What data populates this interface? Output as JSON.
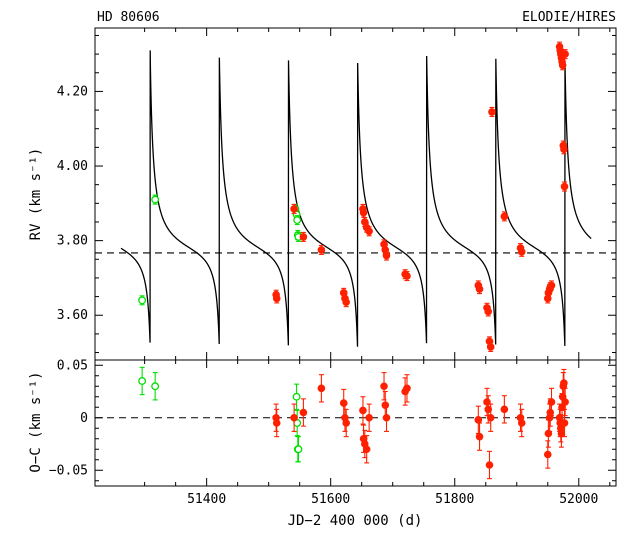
{
  "chart_data": [
    {
      "type": "scatter",
      "name_left": "HD 80606",
      "name_right": "ELODIE/HIRES",
      "xlabel": "",
      "ylabel": "RV (km s⁻¹)",
      "xlim": [
        51220,
        52060
      ],
      "ylim": [
        3.48,
        4.37
      ],
      "yticks": [
        3.6,
        3.8,
        4.0,
        4.2
      ],
      "ytick_labels": [
        "3.60",
        "3.80",
        "4.00",
        "4.20"
      ],
      "xticks": [
        51400,
        51600,
        51800,
        52000
      ],
      "dashed_level": 3.767,
      "model_curve": {
        "color": "#000000",
        "period_d": 111.43,
        "peak_epochs_d": [
          51309,
          51420,
          51532,
          51643,
          51755,
          51866,
          51977
        ],
        "peak_value": 4.31,
        "min_value": 3.49,
        "x_range": [
          51262,
          52020
        ]
      },
      "series": [
        {
          "instrument": "ELODIE",
          "color": "#00e000",
          "marker": "open-circle",
          "x": [
            51296,
            51317,
            51543,
            51545,
            51546,
            51547,
            51548
          ],
          "y": [
            3.64,
            3.91,
            3.885,
            3.87,
            3.855,
            3.815,
            3.81
          ],
          "err": [
            0.012,
            0.012,
            0.012,
            0.012,
            0.012,
            0.012,
            0.012
          ]
        },
        {
          "instrument": "HIRES",
          "color": "#ff2000",
          "marker": "filled-circle",
          "x": [
            51512,
            51513,
            51541,
            51556,
            51585,
            51621,
            51623,
            51625,
            51652,
            51653,
            51655,
            51658,
            51662,
            51686,
            51688,
            51690,
            51720,
            51723,
            51838,
            51840,
            51852,
            51854,
            51856,
            51858,
            51860,
            51880,
            51906,
            51908,
            51950,
            51951,
            51953,
            51954,
            51956,
            51969,
            51970,
            51971,
            51972,
            51973,
            51974,
            51975,
            51976,
            51977,
            51978
          ],
          "y": [
            3.655,
            3.645,
            3.885,
            3.81,
            3.775,
            3.66,
            3.645,
            3.635,
            3.885,
            3.875,
            3.85,
            3.835,
            3.825,
            3.79,
            3.775,
            3.76,
            3.71,
            3.705,
            3.68,
            3.67,
            3.62,
            3.61,
            3.53,
            3.515,
            4.145,
            3.865,
            3.78,
            3.77,
            3.645,
            3.66,
            3.67,
            3.675,
            3.68,
            4.32,
            4.31,
            4.3,
            4.29,
            4.28,
            4.27,
            4.055,
            4.045,
            3.945,
            4.3
          ],
          "err": [
            0.012,
            0.012,
            0.012,
            0.012,
            0.012,
            0.012,
            0.012,
            0.012,
            0.012,
            0.012,
            0.012,
            0.012,
            0.012,
            0.012,
            0.012,
            0.012,
            0.012,
            0.012,
            0.012,
            0.012,
            0.012,
            0.012,
            0.012,
            0.012,
            0.012,
            0.012,
            0.012,
            0.012,
            0.012,
            0.012,
            0.012,
            0.012,
            0.012,
            0.012,
            0.012,
            0.012,
            0.012,
            0.012,
            0.012,
            0.012,
            0.012,
            0.012,
            0.012
          ]
        }
      ]
    },
    {
      "type": "scatter",
      "xlabel": "JD−2 400 000 (d)",
      "ylabel": "O−C (km s⁻¹)",
      "xlim": [
        51220,
        52060
      ],
      "ylim": [
        -0.065,
        0.055
      ],
      "yticks": [
        -0.05,
        0,
        0.05
      ],
      "ytick_labels": [
        "−0.05",
        "0",
        "0.05"
      ],
      "xticks": [
        51400,
        51600,
        51800,
        52000
      ],
      "xtick_labels": [
        "51400",
        "51600",
        "51800",
        "52000"
      ],
      "dashed_level": 0,
      "series": [
        {
          "instrument": "ELODIE",
          "color": "#00e000",
          "marker": "open-circle",
          "x": [
            51296,
            51317,
            51545,
            51546,
            51547,
            51548
          ],
          "y": [
            0.035,
            0.03,
            0.02,
            -0.005,
            -0.03,
            -0.03
          ],
          "err": [
            0.013,
            0.013,
            0.012,
            0.012,
            0.012,
            0.012
          ]
        },
        {
          "instrument": "HIRES",
          "color": "#ff2000",
          "marker": "filled-circle",
          "x": [
            51512,
            51513,
            51541,
            51556,
            51585,
            51621,
            51623,
            51625,
            51652,
            51653,
            51655,
            51658,
            51662,
            51686,
            51688,
            51690,
            51720,
            51723,
            51838,
            51840,
            51852,
            51854,
            51856,
            51858,
            51880,
            51906,
            51908,
            51950,
            51951,
            51953,
            51954,
            51956,
            51969,
            51970,
            51971,
            51972,
            51973,
            51974,
            51975,
            51976,
            51977,
            51978
          ],
          "y": [
            0.0,
            -0.005,
            0.0,
            0.005,
            0.028,
            0.014,
            0.0,
            -0.005,
            0.007,
            -0.02,
            -0.025,
            -0.03,
            0.0,
            0.03,
            0.012,
            0.0,
            0.025,
            0.028,
            -0.002,
            -0.018,
            0.015,
            0.008,
            -0.045,
            0.0,
            0.008,
            0.0,
            -0.005,
            -0.035,
            -0.015,
            0.0,
            0.005,
            0.015,
            0.0,
            -0.005,
            -0.01,
            -0.015,
            0.01,
            0.02,
            0.03,
            0.033,
            -0.005,
            0.015
          ],
          "err": [
            0.013,
            0.013,
            0.013,
            0.013,
            0.013,
            0.013,
            0.013,
            0.013,
            0.013,
            0.013,
            0.013,
            0.013,
            0.013,
            0.013,
            0.013,
            0.013,
            0.013,
            0.013,
            0.013,
            0.013,
            0.013,
            0.013,
            0.013,
            0.013,
            0.013,
            0.013,
            0.013,
            0.013,
            0.013,
            0.013,
            0.013,
            0.013,
            0.013,
            0.013,
            0.013,
            0.013,
            0.013,
            0.013,
            0.013,
            0.013,
            0.013,
            0.013
          ]
        }
      ]
    }
  ]
}
